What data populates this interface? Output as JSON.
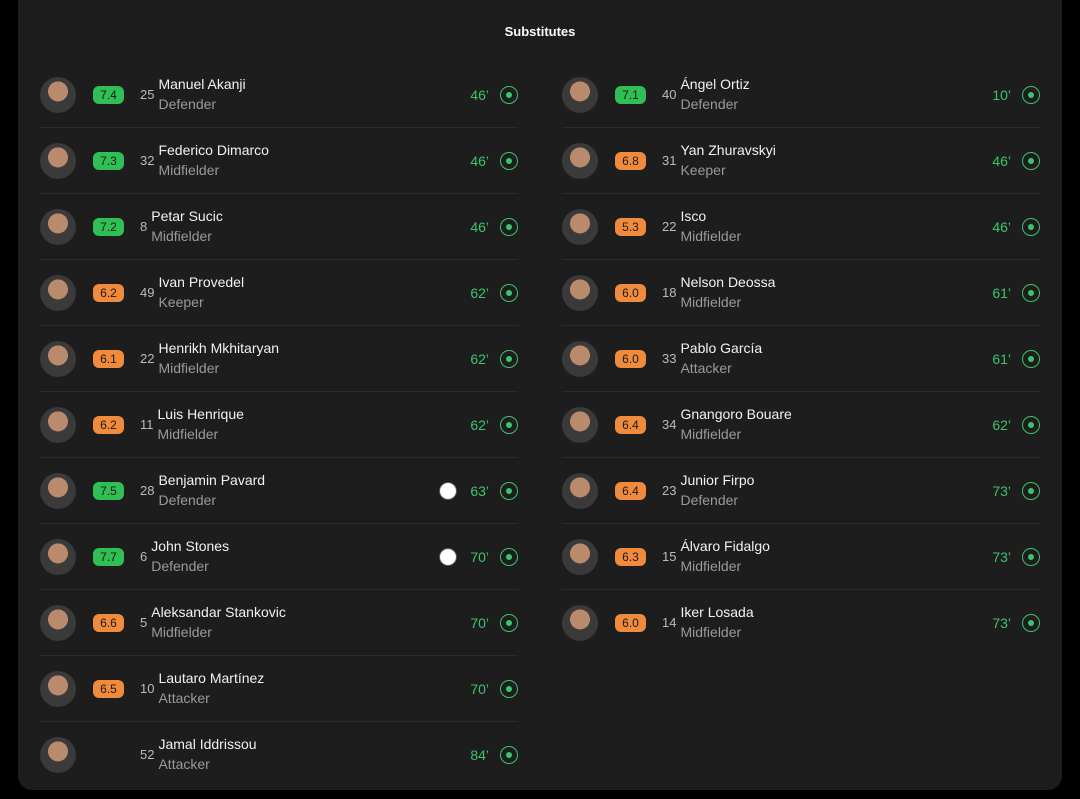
{
  "header": {
    "title": "Substitutes"
  },
  "columns": [
    {
      "players": [
        {
          "rating": "7.4",
          "number": 25,
          "name": "Manuel Akanji",
          "position": "Defender",
          "minute": "46’"
        },
        {
          "rating": "7.3",
          "number": 32,
          "name": "Federico Dimarco",
          "position": "Midfielder",
          "minute": "46’"
        },
        {
          "rating": "7.2",
          "number": 8,
          "name": "Petar Sucic",
          "position": "Midfielder",
          "minute": "46’"
        },
        {
          "rating": "6.2",
          "number": 49,
          "name": "Ivan Provedel",
          "position": "Keeper",
          "minute": "62’"
        },
        {
          "rating": "6.1",
          "number": 22,
          "name": "Henrikh Mkhitaryan",
          "position": "Midfielder",
          "minute": "62’"
        },
        {
          "rating": "6.2",
          "number": 11,
          "name": "Luis Henrique",
          "position": "Midfielder",
          "minute": "62’"
        },
        {
          "rating": "7.5",
          "number": 28,
          "name": "Benjamin Pavard",
          "position": "Defender",
          "minute": "63’",
          "event": "assist"
        },
        {
          "rating": "7.7",
          "number": 6,
          "name": "John Stones",
          "position": "Defender",
          "minute": "70’",
          "event": "goal"
        },
        {
          "rating": "6.6",
          "number": 5,
          "name": "Aleksandar Stankovic",
          "position": "Midfielder",
          "minute": "70’"
        },
        {
          "rating": "6.5",
          "number": 10,
          "name": "Lautaro Martínez",
          "position": "Attacker",
          "minute": "70’"
        },
        {
          "number": 52,
          "name": "Jamal Iddrissou",
          "position": "Attacker",
          "minute": "84’"
        }
      ]
    },
    {
      "players": [
        {
          "rating": "7.1",
          "number": 40,
          "name": "Ángel Ortiz",
          "position": "Defender",
          "minute": "10’"
        },
        {
          "rating": "6.8",
          "number": 31,
          "name": "Yan Zhuravskyi",
          "position": "Keeper",
          "minute": "46’"
        },
        {
          "rating": "5.3",
          "number": 22,
          "name": "Isco",
          "position": "Midfielder",
          "minute": "46’"
        },
        {
          "rating": "6.0",
          "number": 18,
          "name": "Nelson Deossa",
          "position": "Midfielder",
          "minute": "61’"
        },
        {
          "rating": "6.0",
          "number": 33,
          "name": "Pablo García",
          "position": "Attacker",
          "minute": "61’"
        },
        {
          "rating": "6.4",
          "number": 34,
          "name": "Gnangoro Bouare",
          "position": "Midfielder",
          "minute": "62’"
        },
        {
          "rating": "6.4",
          "number": 23,
          "name": "Junior Firpo",
          "position": "Defender",
          "minute": "73’"
        },
        {
          "rating": "6.3",
          "number": 15,
          "name": "Álvaro Fidalgo",
          "position": "Midfielder",
          "minute": "73’"
        },
        {
          "rating": "6.0",
          "number": 14,
          "name": "Iker Losada",
          "position": "Midfielder",
          "minute": "73’"
        }
      ]
    }
  ]
}
